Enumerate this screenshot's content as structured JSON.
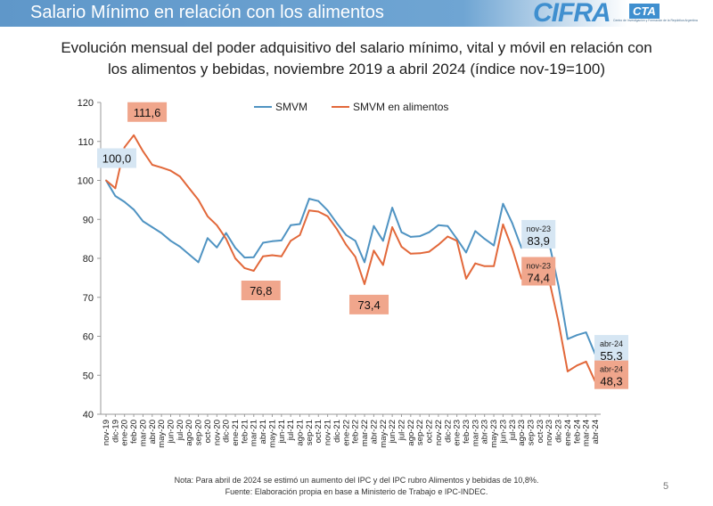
{
  "header": {
    "title": "Salario Mínimo en relación con los alimentos",
    "logo_text": "CIFRA",
    "logo_badge": "CTA",
    "logo_tagline": "Centro de Investigación y Formación de la República Argentina"
  },
  "subtitle_lines": [
    "Evolución mensual del poder adquisitivo del salario mínimo, vital y móvil en relación con",
    "los alimentos y bebidas, noviembre 2019 a abril 2024 (índice nov-19=100)"
  ],
  "footer": {
    "note": "Nota: Para abril de 2024 se estimó un aumento del IPC y del IPC rubro Alimentos y bebidas de 10,8%.",
    "source": "Fuente: Elaboración propia en base a Ministerio de Trabajo e IPC-INDEC.",
    "page_number": "5"
  },
  "colors": {
    "smvm": "#4f93c2",
    "alimentos": "#e2683a",
    "label_blue_bg": "#d6e6f3",
    "label_orange_bg": "#f0a68c"
  },
  "chart_data": {
    "type": "line",
    "title": "",
    "xlabel": "",
    "ylabel": "",
    "ylim": [
      40,
      120
    ],
    "yticks": [
      "40",
      "50",
      "60",
      "70",
      "80",
      "90",
      "100",
      "110",
      "120"
    ],
    "grid": false,
    "legend_position": "top-center",
    "categories": [
      "nov-19",
      "dic-19",
      "ene-20",
      "feb-20",
      "mar-20",
      "abr-20",
      "may-20",
      "jun-20",
      "jul-20",
      "ago-20",
      "sep-20",
      "oct-20",
      "nov-20",
      "dic-20",
      "ene-21",
      "feb-21",
      "mar-21",
      "abr-21",
      "may-21",
      "jun-21",
      "jul-21",
      "ago-21",
      "sep-21",
      "oct-21",
      "nov-21",
      "dic-21",
      "ene-22",
      "feb-22",
      "mar-22",
      "abr-22",
      "may-22",
      "jun-22",
      "jul-22",
      "ago-22",
      "sep-22",
      "oct-22",
      "nov-22",
      "dic-22",
      "ene-23",
      "feb-23",
      "mar-23",
      "abr-23",
      "may-23",
      "jun-23",
      "jul-23",
      "ago-23",
      "sep-23",
      "oct-23",
      "nov-23",
      "dic-23",
      "ene-24",
      "feb-24",
      "mar-24",
      "abr-24"
    ],
    "series": [
      {
        "name": "SMVM",
        "color": "#4f93c2",
        "values": [
          100,
          96,
          94.5,
          92.5,
          89.5,
          88,
          86.5,
          84.5,
          83,
          81,
          79,
          85.2,
          82.8,
          86.5,
          82.7,
          80.2,
          80.3,
          84,
          84.4,
          84.6,
          88.5,
          88.8,
          95.3,
          94.7,
          92.3,
          89,
          86,
          84.5,
          79,
          88.3,
          84.5,
          93,
          86.7,
          85.5,
          85.7,
          86.7,
          88.5,
          88.3,
          85,
          81.5,
          87,
          85,
          83.3,
          94,
          89,
          82.7,
          85.6,
          83.8,
          83.9,
          73,
          59.3,
          60.3,
          61,
          55.3
        ]
      },
      {
        "name": "SMVM en alimentos",
        "color": "#e2683a",
        "values": [
          100,
          98,
          108.5,
          111.6,
          107.5,
          104,
          103.3,
          102.5,
          101,
          98,
          95,
          90.8,
          88.5,
          85,
          80,
          77.5,
          76.8,
          80.5,
          80.8,
          80.5,
          84.5,
          86,
          92.3,
          92,
          90.8,
          87.5,
          83.5,
          80.4,
          73.4,
          82,
          78.3,
          88,
          83,
          81.2,
          81.3,
          81.7,
          83.5,
          85.6,
          84.5,
          74.8,
          78.7,
          78,
          78,
          88.7,
          82.5,
          74.8,
          77.7,
          74.4,
          74.4,
          63.7,
          51,
          52.5,
          53.5,
          48.3
        ]
      }
    ],
    "annotations": [
      {
        "series": "SMVM en alimentos",
        "index": 3,
        "label": "111,6",
        "style": "orange"
      },
      {
        "series": "SMVM",
        "index": 0,
        "label": "100,0",
        "style": "blue"
      },
      {
        "series": "SMVM en alimentos",
        "index": 16,
        "label": "76,8",
        "style": "orange"
      },
      {
        "series": "SMVM en alimentos",
        "index": 28,
        "label": "73,4",
        "style": "orange"
      },
      {
        "series": "SMVM",
        "index": 48,
        "label": "83,9",
        "sublabel": "nov-23",
        "style": "blue"
      },
      {
        "series": "SMVM en alimentos",
        "index": 48,
        "label": "74,4",
        "sublabel": "nov-23",
        "style": "orange"
      },
      {
        "series": "SMVM",
        "index": 53,
        "label": "55,3",
        "sublabel": "abr-24",
        "style": "blue"
      },
      {
        "series": "SMVM en alimentos",
        "index": 53,
        "label": "48,3",
        "sublabel": "abr-24",
        "style": "orange"
      }
    ]
  }
}
